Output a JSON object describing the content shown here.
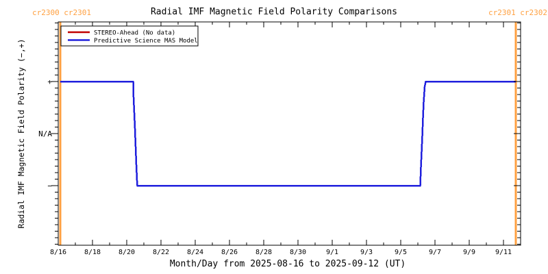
{
  "title": "Radial IMF Magnetic Field Polarity Comparisons",
  "cr_labels": {
    "top_left": "cr2300 cr2301",
    "top_right": "cr2301 cr2302",
    "color": "#FFA040"
  },
  "colors": {
    "background": "#FFFFFF",
    "axis": "#000000",
    "orange": "#FFA040",
    "red": "#C00000",
    "blue": "#2020DD"
  },
  "legend": {
    "items": [
      {
        "label": "STEREO-Ahead (No data)",
        "color": "#C00000"
      },
      {
        "label": "Predictive Science MAS Model",
        "color": "#2020DD"
      }
    ]
  },
  "x_axis": {
    "title": "Month/Day from 2025-08-16 to 2025-09-12 (UT)",
    "tick_labels": [
      "8/16",
      "8/18",
      "8/20",
      "8/22",
      "8/24",
      "8/26",
      "8/28",
      "8/30",
      "9/1",
      "9/3",
      "9/5",
      "9/7",
      "9/9",
      "9/11"
    ],
    "tick_days": [
      0,
      2,
      4,
      6,
      8,
      10,
      12,
      14,
      16,
      18,
      20,
      22,
      24,
      26
    ],
    "minor_step_days": 1,
    "range_days": [
      0,
      27
    ]
  },
  "y_axis": {
    "title": "Radial IMF Magnetic Field Polarity (−,+)",
    "tick_labels": [
      "+",
      "N/A",
      "−"
    ],
    "tick_values": [
      1,
      0,
      -1
    ],
    "minor_step": 0.125,
    "range": [
      -2.145,
      2.145
    ]
  },
  "chart_data": {
    "type": "line",
    "x_unit": "days since 2025-08-16 00:00 UT",
    "grid": "off",
    "legend_position": "top-left-inside",
    "series": [
      {
        "name": "STEREO-Ahead (No data)",
        "color": "#C00000",
        "points": []
      },
      {
        "name": "Predictive Science MAS Model",
        "color": "#2020DD",
        "points": [
          [
            0.12,
            1
          ],
          [
            4.38,
            1
          ],
          [
            4.4,
            0.7
          ],
          [
            4.44,
            0.4
          ],
          [
            4.48,
            0.1
          ],
          [
            4.52,
            -0.25
          ],
          [
            4.56,
            -0.6
          ],
          [
            4.6,
            -0.9
          ],
          [
            4.62,
            -1
          ],
          [
            21.14,
            -1
          ],
          [
            21.18,
            -0.65
          ],
          [
            21.22,
            -0.35
          ],
          [
            21.26,
            -0.05
          ],
          [
            21.3,
            0.3
          ],
          [
            21.34,
            0.6
          ],
          [
            21.4,
            0.9
          ],
          [
            21.46,
            1
          ],
          [
            26.72,
            1
          ]
        ]
      }
    ],
    "carrington_boundaries_days": [
      0.12,
      26.72
    ],
    "polarity_levels": {
      "positive": 1,
      "no_data": 0,
      "negative": -1
    }
  }
}
